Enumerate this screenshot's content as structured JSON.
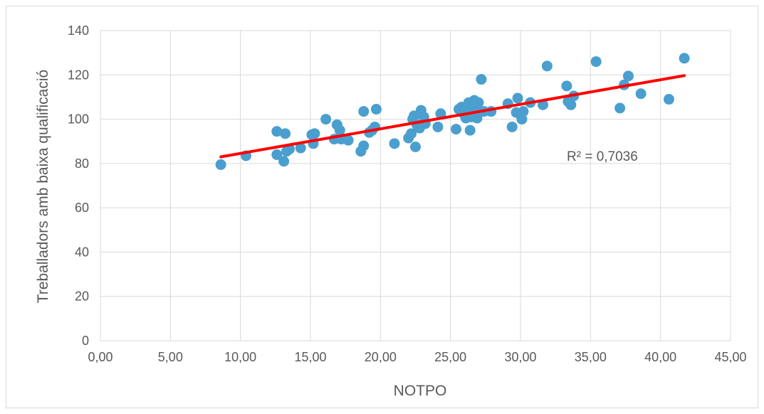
{
  "chart_data": {
    "type": "scatter",
    "title": "",
    "xlabel": "NOTPO",
    "ylabel": "Treballadors amb baixa qualificació",
    "xlim": [
      0,
      45
    ],
    "ylim": [
      0,
      140
    ],
    "x_ticks": [
      "0,00",
      "5,00",
      "10,00",
      "15,00",
      "20,00",
      "25,00",
      "30,00",
      "35,00",
      "40,00",
      "45,00"
    ],
    "y_ticks": [
      "0",
      "20",
      "40",
      "60",
      "80",
      "100",
      "120",
      "140"
    ],
    "grid": true,
    "legend": "none",
    "colors": {
      "points": "#4a9fcf",
      "trendline": "#ff0000",
      "grid": "#d9d9d9",
      "text": "#595959"
    },
    "series": [
      {
        "points": [
          [
            8.6,
            79.5
          ],
          [
            10.4,
            83.5
          ],
          [
            12.6,
            94.5
          ],
          [
            12.6,
            84.0
          ],
          [
            13.1,
            81.0
          ],
          [
            13.2,
            93.5
          ],
          [
            13.3,
            85.5
          ],
          [
            13.5,
            86.5
          ],
          [
            14.3,
            87.0
          ],
          [
            15.1,
            93.0
          ],
          [
            15.2,
            89.0
          ],
          [
            15.3,
            93.5
          ],
          [
            16.1,
            100.0
          ],
          [
            16.7,
            91.0
          ],
          [
            16.9,
            97.5
          ],
          [
            17.1,
            95.0
          ],
          [
            17.2,
            91.0
          ],
          [
            17.7,
            90.5
          ],
          [
            18.6,
            85.5
          ],
          [
            18.8,
            88.0
          ],
          [
            18.8,
            103.5
          ],
          [
            19.2,
            94.0
          ],
          [
            19.4,
            95.0
          ],
          [
            19.6,
            96.5
          ],
          [
            19.7,
            104.5
          ],
          [
            21.0,
            89.0
          ],
          [
            22.0,
            91.5
          ],
          [
            22.2,
            93.5
          ],
          [
            22.3,
            100.0
          ],
          [
            22.4,
            101.5
          ],
          [
            22.5,
            87.5
          ],
          [
            22.6,
            97.5
          ],
          [
            22.8,
            96.0
          ],
          [
            22.9,
            104.0
          ],
          [
            23.1,
            101.0
          ],
          [
            23.2,
            98.0
          ],
          [
            24.1,
            96.5
          ],
          [
            24.3,
            102.5
          ],
          [
            25.4,
            95.5
          ],
          [
            25.6,
            104.5
          ],
          [
            25.8,
            105.5
          ],
          [
            26.0,
            102.0
          ],
          [
            26.1,
            100.5
          ],
          [
            26.2,
            106.0
          ],
          [
            26.3,
            107.5
          ],
          [
            26.4,
            95.0
          ],
          [
            26.5,
            101.0
          ],
          [
            26.6,
            105.0
          ],
          [
            26.7,
            108.5
          ],
          [
            26.8,
            104.0
          ],
          [
            26.9,
            100.5
          ],
          [
            27.0,
            107.5
          ],
          [
            27.2,
            118.0
          ],
          [
            27.4,
            103.5
          ],
          [
            27.9,
            103.5
          ],
          [
            29.1,
            107.0
          ],
          [
            29.4,
            96.5
          ],
          [
            29.7,
            103.0
          ],
          [
            29.8,
            109.5
          ],
          [
            30.0,
            102.0
          ],
          [
            30.1,
            100.0
          ],
          [
            30.2,
            103.5
          ],
          [
            30.7,
            107.5
          ],
          [
            31.6,
            106.5
          ],
          [
            31.9,
            124.0
          ],
          [
            33.3,
            115.0
          ],
          [
            33.4,
            108.0
          ],
          [
            33.6,
            106.5
          ],
          [
            33.8,
            110.5
          ],
          [
            35.4,
            126.0
          ],
          [
            37.1,
            105.0
          ],
          [
            37.4,
            115.5
          ],
          [
            37.7,
            119.5
          ],
          [
            38.6,
            111.5
          ],
          [
            40.6,
            109.0
          ],
          [
            41.7,
            127.5
          ]
        ]
      }
    ],
    "trendline": {
      "type": "linear",
      "x_start": 8.6,
      "y_start": 83.0,
      "x_end": 41.7,
      "y_end": 119.7
    },
    "annotation": "R² = 0,7036"
  }
}
